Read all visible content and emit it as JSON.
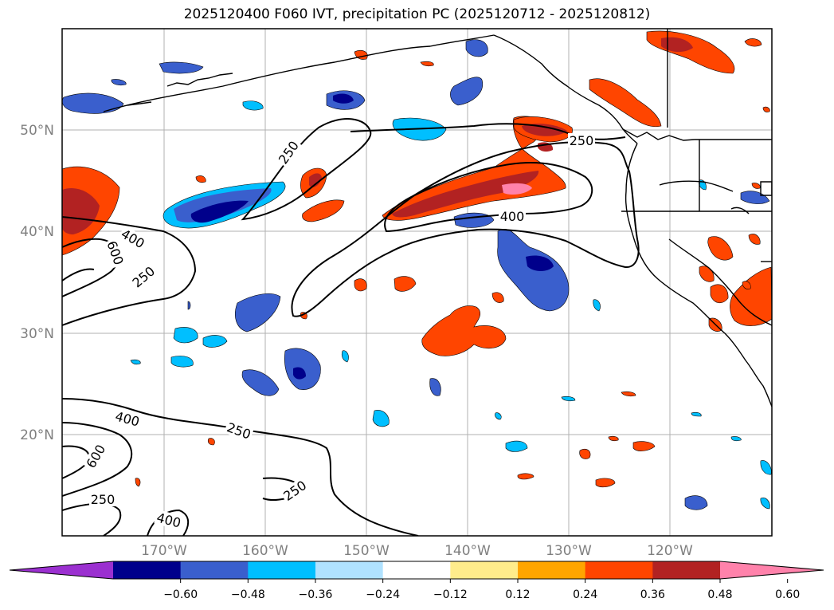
{
  "title": "2025120400 F060 IVT, precipitation PC (2025120712 - 2025120812)",
  "latitude_labels": [
    "50°N",
    "40°N",
    "30°N",
    "20°N"
  ],
  "longitude_labels": [
    "170°W",
    "160°W",
    "150°W",
    "140°W",
    "130°W",
    "120°W"
  ],
  "contour_labels": [
    "250",
    "250",
    "250",
    "250",
    "250",
    "250",
    "400",
    "400",
    "400",
    "400",
    "600",
    "600"
  ],
  "colorbar": {
    "tick_labels": [
      "−0.60",
      "−0.48",
      "−0.36",
      "−0.24",
      "−0.12",
      "0.12",
      "0.24",
      "0.36",
      "0.48",
      "0.60"
    ],
    "colors": [
      "#9b30d0",
      "#00008b",
      "#3a5fcd",
      "#00bfff",
      "#b0e2ff",
      "#ffffff",
      "#ffec8b",
      "#ffa500",
      "#ff4500",
      "#b22222",
      "#ff82ab"
    ]
  }
}
